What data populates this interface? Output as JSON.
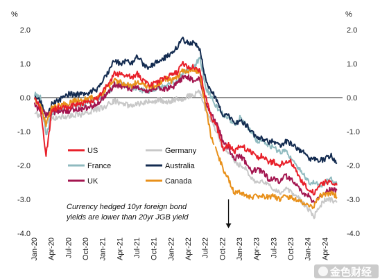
{
  "chart_data": {
    "type": "line",
    "title": "",
    "xlabel": "",
    "ylabel": "%",
    "ylabel_right": "%",
    "ylim": [
      -4.0,
      2.0
    ],
    "y_ticks": [
      "2.0",
      "1.0",
      "0.0",
      "-1.0",
      "-2.0",
      "-3.0",
      "-4.0"
    ],
    "y_tick_values": [
      2,
      1,
      0,
      -1,
      -2,
      -3,
      -4
    ],
    "x_tick_labels": [
      "Jan-20",
      "Apr-20",
      "Jul-20",
      "Oct-20",
      "Jan-21",
      "Apr-21",
      "Jul-21",
      "Oct-21",
      "Jan-22",
      "Apr-22",
      "Jul-22",
      "Oct-22",
      "Jan-23",
      "Apr-23",
      "Jul-23",
      "Oct-23",
      "Jan-24",
      "Apr-24"
    ],
    "x_month_start": "2020-01",
    "x_months_total": 54,
    "grid": false,
    "zero_line": true,
    "legend_position": "center-left",
    "x": [
      "2020-01",
      "2020-02",
      "2020-03",
      "2020-04",
      "2020-05",
      "2020-06",
      "2020-07",
      "2020-08",
      "2020-09",
      "2020-10",
      "2020-11",
      "2020-12",
      "2021-01",
      "2021-02",
      "2021-03",
      "2021-04",
      "2021-05",
      "2021-06",
      "2021-07",
      "2021-08",
      "2021-09",
      "2021-10",
      "2021-11",
      "2021-12",
      "2022-01",
      "2022-02",
      "2022-03",
      "2022-04",
      "2022-05",
      "2022-06",
      "2022-07",
      "2022-08",
      "2022-09",
      "2022-10",
      "2022-11",
      "2022-12",
      "2023-01",
      "2023-02",
      "2023-03",
      "2023-04",
      "2023-05",
      "2023-06",
      "2023-07",
      "2023-08",
      "2023-09",
      "2023-10",
      "2023-11",
      "2023-12",
      "2024-01",
      "2024-02",
      "2024-03",
      "2024-04",
      "2024-05",
      "2024-06"
    ],
    "series": [
      {
        "name": "US",
        "color": "#e8202a",
        "values": [
          0.0,
          -0.3,
          -1.7,
          -0.4,
          -0.3,
          -0.3,
          -0.3,
          -0.2,
          -0.2,
          -0.15,
          -0.1,
          0.0,
          0.2,
          0.4,
          0.7,
          0.7,
          0.65,
          0.6,
          0.7,
          0.5,
          0.4,
          0.4,
          0.5,
          0.6,
          0.7,
          0.75,
          1.0,
          0.9,
          0.9,
          0.8,
          0.0,
          -0.6,
          -0.9,
          -1.5,
          -1.4,
          -1.6,
          -1.4,
          -1.5,
          -1.6,
          -1.8,
          -1.7,
          -1.9,
          -1.9,
          -2.0,
          -1.85,
          -1.9,
          -2.2,
          -2.5,
          -2.7,
          -2.8,
          -2.6,
          -2.5,
          -2.5,
          -2.6
        ]
      },
      {
        "name": "France",
        "color": "#8fbabf",
        "values": [
          0.1,
          0.0,
          -1.1,
          -0.5,
          -0.35,
          -0.3,
          -0.25,
          -0.2,
          -0.2,
          -0.15,
          -0.1,
          -0.05,
          0.0,
          0.15,
          0.4,
          0.4,
          0.35,
          0.3,
          0.3,
          0.2,
          0.2,
          0.25,
          0.3,
          0.35,
          0.4,
          0.5,
          0.75,
          0.8,
          0.9,
          1.2,
          0.3,
          0.0,
          -0.3,
          -0.5,
          -0.6,
          -0.8,
          -0.6,
          -0.8,
          -1.0,
          -1.3,
          -1.3,
          -1.4,
          -1.5,
          -1.6,
          -1.6,
          -1.8,
          -2.0,
          -2.2,
          -2.5,
          -2.5,
          -2.6,
          -2.5,
          -2.4,
          -2.5
        ]
      },
      {
        "name": "UK",
        "color": "#a3154f",
        "values": [
          -0.2,
          -0.4,
          -0.5,
          -0.45,
          -0.4,
          -0.4,
          -0.4,
          -0.35,
          -0.35,
          -0.3,
          -0.25,
          -0.2,
          0.0,
          0.15,
          0.4,
          0.35,
          0.3,
          0.25,
          0.3,
          0.2,
          0.15,
          0.3,
          0.3,
          0.25,
          0.3,
          0.4,
          0.6,
          0.6,
          0.5,
          0.55,
          -0.2,
          -0.5,
          -0.8,
          -1.3,
          -1.5,
          -1.8,
          -1.7,
          -1.9,
          -2.2,
          -2.1,
          -2.2,
          -2.4,
          -2.4,
          -2.5,
          -2.3,
          -2.4,
          -2.6,
          -2.8,
          -2.9,
          -3.1,
          -2.9,
          -2.8,
          -2.7,
          -2.75
        ]
      },
      {
        "name": "Germany",
        "color": "#c8c8c8",
        "values": [
          -0.4,
          -0.6,
          -0.7,
          -0.6,
          -0.6,
          -0.55,
          -0.55,
          -0.5,
          -0.5,
          -0.45,
          -0.4,
          -0.35,
          -0.3,
          -0.2,
          -0.1,
          -0.15,
          -0.2,
          -0.25,
          -0.2,
          -0.15,
          -0.1,
          -0.1,
          -0.05,
          -0.15,
          -0.1,
          -0.05,
          -0.1,
          0.05,
          0.1,
          0.2,
          -0.4,
          -0.7,
          -1.0,
          -1.5,
          -1.6,
          -1.9,
          -2.0,
          -2.1,
          -2.4,
          -2.5,
          -2.5,
          -2.6,
          -2.7,
          -2.8,
          -2.7,
          -2.8,
          -2.9,
          -3.1,
          -3.3,
          -3.5,
          -3.2,
          -3.0,
          -3.0,
          -3.1
        ]
      },
      {
        "name": "Australia",
        "color": "#132b50",
        "values": [
          0.0,
          -0.1,
          -0.6,
          -0.2,
          -0.1,
          0.0,
          0.1,
          0.1,
          0.1,
          0.1,
          0.2,
          0.25,
          0.5,
          0.8,
          1.1,
          1.0,
          1.1,
          1.0,
          1.2,
          1.0,
          0.9,
          1.0,
          1.1,
          1.2,
          1.3,
          1.5,
          1.7,
          1.6,
          1.6,
          1.4,
          0.5,
          0.2,
          -0.1,
          -0.5,
          -0.5,
          -0.8,
          -0.7,
          -0.8,
          -1.0,
          -1.2,
          -1.2,
          -1.3,
          -1.3,
          -1.4,
          -1.3,
          -1.35,
          -1.5,
          -1.6,
          -1.8,
          -1.8,
          -1.85,
          -1.8,
          -1.7,
          -1.95
        ]
      },
      {
        "name": "Canada",
        "color": "#e8901a",
        "values": [
          -0.1,
          -0.2,
          -0.8,
          -0.3,
          -0.25,
          -0.2,
          -0.15,
          -0.1,
          -0.1,
          -0.05,
          0.0,
          0.05,
          0.15,
          0.35,
          0.5,
          0.45,
          0.4,
          0.35,
          0.5,
          0.4,
          0.3,
          0.35,
          0.45,
          0.55,
          0.5,
          0.6,
          0.8,
          0.8,
          0.85,
          0.7,
          -0.3,
          -1.2,
          -1.6,
          -2.1,
          -2.4,
          -2.8,
          -2.8,
          -2.9,
          -2.95,
          -2.9,
          -2.9,
          -2.95,
          -2.9,
          -3.0,
          -2.9,
          -2.95,
          -3.0,
          -3.1,
          -3.2,
          -3.2,
          -2.9,
          -2.85,
          -2.8,
          -2.9
        ]
      }
    ],
    "annotations": [
      {
        "text_lines": [
          "Currency hedged 10yr foreign bond",
          "yields are lower than 20yr JGB yield"
        ],
        "arrow_at": "2022-11",
        "arrow_from_y": -3.0,
        "arrow_to_y": -3.85
      }
    ]
  },
  "watermark": {
    "text": "金色财经"
  }
}
